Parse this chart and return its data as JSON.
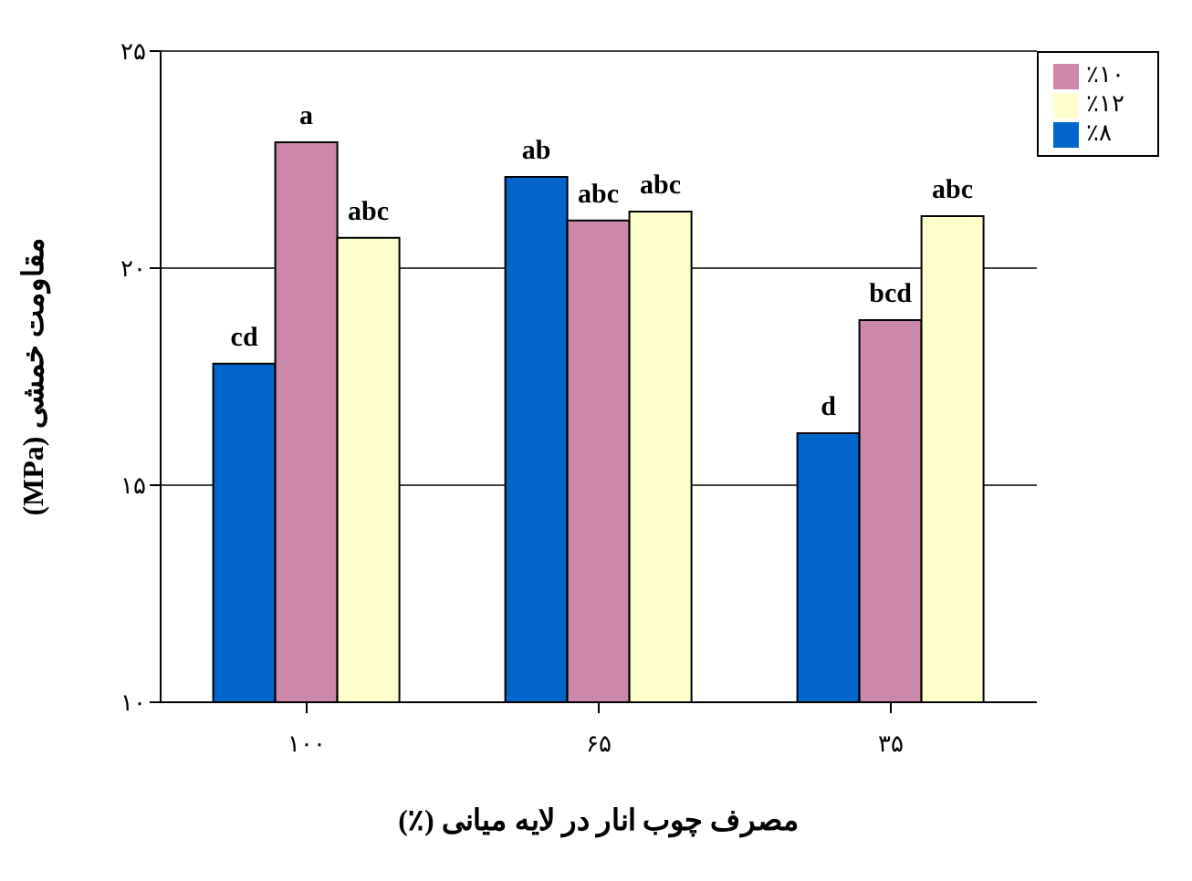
{
  "chart_data": {
    "type": "bar",
    "xlabel": "مصرف چوب انار در لایه میانی (٪)",
    "ylabel": "مقاومت خمشی (MPa)",
    "categories": [
      "۱۰۰",
      "۶۵",
      "۳۵"
    ],
    "series": [
      {
        "name": "٪۸",
        "color": "#0066cc",
        "values": [
          17.8,
          22.1,
          16.2
        ],
        "value_labels": [
          "cd",
          "ab",
          "d"
        ]
      },
      {
        "name": "٪۱۰",
        "color": "#cc88aa",
        "values": [
          22.9,
          21.1,
          18.8
        ],
        "value_labels": [
          "a",
          "abc",
          "bcd"
        ]
      },
      {
        "name": "٪۱۲",
        "color": "#ffffcc",
        "values": [
          20.7,
          21.3,
          21.2
        ],
        "value_labels": [
          "abc",
          "abc",
          "abc"
        ]
      }
    ],
    "ylim": [
      10,
      25
    ],
    "yticks": [
      {
        "value": 10,
        "label": "۱۰"
      },
      {
        "value": 15,
        "label": "۱۵"
      },
      {
        "value": 20,
        "label": "۲۰"
      },
      {
        "value": 25,
        "label": "۲۵"
      }
    ],
    "grid": "y",
    "legend": "top right"
  }
}
